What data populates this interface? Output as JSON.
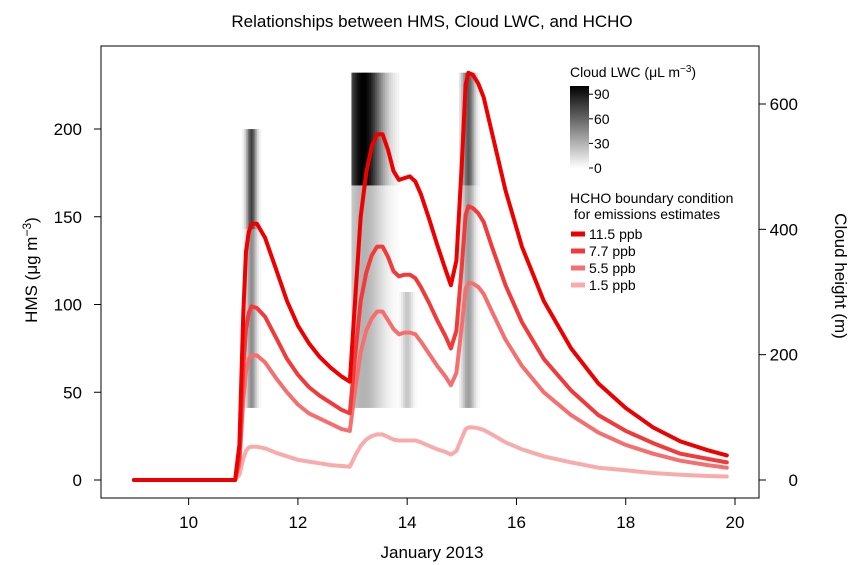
{
  "chart_data": {
    "type": "line",
    "title": "Relationships between HMS, Cloud LWC, and HCHO",
    "xlabel": "January 2013",
    "ylabel_left": "HMS (μg m",
    "ylabel_left_sup": "−3",
    "ylabel_left_close": ")",
    "ylabel_right": "Cloud height (m)",
    "xlim": [
      8.6,
      20.4
    ],
    "ylim_left": [
      -12,
      236
    ],
    "ylim_right": [
      -34,
      660
    ],
    "x_ticks": [
      10,
      12,
      14,
      16,
      18,
      20
    ],
    "y_ticks_left": [
      0,
      50,
      100,
      150,
      200
    ],
    "y_ticks_right": [
      0,
      200,
      400,
      600
    ],
    "grid": false,
    "legend_lwc": {
      "title_prefix": "Cloud LWC (",
      "title_unit": "μL m",
      "title_sup": "−3",
      "title_suffix": ")",
      "ticks": [
        0,
        30,
        60,
        90
      ],
      "color_low": "#ffffff",
      "color_high": "#000000"
    },
    "legend_hcho": {
      "title_line1": "HCHO boundary condition",
      "title_line2": " for emissions estimates",
      "placement": "top-right"
    },
    "series": [
      {
        "name": "11.5 ppb",
        "color": "#ee0000",
        "points": [
          [
            9.0,
            0
          ],
          [
            10.85,
            0
          ],
          [
            10.93,
            20
          ],
          [
            11.0,
            95
          ],
          [
            11.05,
            130
          ],
          [
            11.1,
            141
          ],
          [
            11.15,
            146
          ],
          [
            11.25,
            146
          ],
          [
            11.4,
            138
          ],
          [
            11.6,
            120
          ],
          [
            11.8,
            102
          ],
          [
            12.0,
            88
          ],
          [
            12.2,
            78
          ],
          [
            12.4,
            70
          ],
          [
            12.6,
            64
          ],
          [
            12.8,
            59
          ],
          [
            12.95,
            56
          ],
          [
            13.05,
            104
          ],
          [
            13.15,
            150
          ],
          [
            13.25,
            175
          ],
          [
            13.35,
            190
          ],
          [
            13.45,
            197
          ],
          [
            13.55,
            197
          ],
          [
            13.65,
            188
          ],
          [
            13.75,
            176
          ],
          [
            13.85,
            171
          ],
          [
            13.95,
            172
          ],
          [
            14.05,
            173
          ],
          [
            14.15,
            170
          ],
          [
            14.25,
            163
          ],
          [
            14.4,
            149
          ],
          [
            14.55,
            134
          ],
          [
            14.7,
            120
          ],
          [
            14.8,
            111
          ],
          [
            14.9,
            125
          ],
          [
            15.0,
            180
          ],
          [
            15.07,
            225
          ],
          [
            15.12,
            232
          ],
          [
            15.2,
            231
          ],
          [
            15.3,
            226
          ],
          [
            15.4,
            218
          ],
          [
            15.55,
            198
          ],
          [
            15.8,
            165
          ],
          [
            16.1,
            133
          ],
          [
            16.5,
            102
          ],
          [
            17.0,
            75
          ],
          [
            17.5,
            55
          ],
          [
            18.0,
            41
          ],
          [
            18.5,
            30
          ],
          [
            19.0,
            22
          ],
          [
            19.5,
            17
          ],
          [
            19.85,
            14
          ]
        ]
      },
      {
        "name": "7.7 ppb",
        "color": "#f23a3a",
        "points": [
          [
            9.0,
            0
          ],
          [
            10.85,
            0
          ],
          [
            10.93,
            13
          ],
          [
            11.0,
            64
          ],
          [
            11.05,
            86
          ],
          [
            11.1,
            95
          ],
          [
            11.15,
            99
          ],
          [
            11.25,
            98
          ],
          [
            11.4,
            93
          ],
          [
            11.6,
            81
          ],
          [
            11.8,
            69
          ],
          [
            12.0,
            60
          ],
          [
            12.2,
            53
          ],
          [
            12.4,
            48
          ],
          [
            12.6,
            44
          ],
          [
            12.8,
            40
          ],
          [
            12.95,
            38
          ],
          [
            13.05,
            72
          ],
          [
            13.15,
            102
          ],
          [
            13.25,
            118
          ],
          [
            13.35,
            128
          ],
          [
            13.45,
            133
          ],
          [
            13.55,
            133
          ],
          [
            13.65,
            127
          ],
          [
            13.75,
            119
          ],
          [
            13.85,
            116
          ],
          [
            13.95,
            117
          ],
          [
            14.05,
            117
          ],
          [
            14.15,
            115
          ],
          [
            14.25,
            110
          ],
          [
            14.4,
            101
          ],
          [
            14.55,
            91
          ],
          [
            14.7,
            82
          ],
          [
            14.8,
            75
          ],
          [
            14.9,
            85
          ],
          [
            15.0,
            122
          ],
          [
            15.07,
            151
          ],
          [
            15.12,
            156
          ],
          [
            15.2,
            155
          ],
          [
            15.3,
            152
          ],
          [
            15.4,
            147
          ],
          [
            15.55,
            133
          ],
          [
            15.8,
            111
          ],
          [
            16.1,
            90
          ],
          [
            16.5,
            69
          ],
          [
            17.0,
            51
          ],
          [
            17.5,
            37
          ],
          [
            18.0,
            28
          ],
          [
            18.5,
            21
          ],
          [
            19.0,
            15
          ],
          [
            19.5,
            12
          ],
          [
            19.85,
            10
          ]
        ]
      },
      {
        "name": "5.5 ppb",
        "color": "#f56f6f",
        "points": [
          [
            9.0,
            0
          ],
          [
            10.85,
            0
          ],
          [
            10.93,
            9
          ],
          [
            11.0,
            46
          ],
          [
            11.05,
            62
          ],
          [
            11.1,
            69
          ],
          [
            11.15,
            71
          ],
          [
            11.25,
            71
          ],
          [
            11.4,
            67
          ],
          [
            11.6,
            58
          ],
          [
            11.8,
            50
          ],
          [
            12.0,
            43
          ],
          [
            12.2,
            38
          ],
          [
            12.4,
            35
          ],
          [
            12.6,
            32
          ],
          [
            12.8,
            29
          ],
          [
            12.95,
            28
          ],
          [
            13.05,
            52
          ],
          [
            13.15,
            73
          ],
          [
            13.25,
            85
          ],
          [
            13.35,
            92
          ],
          [
            13.45,
            96
          ],
          [
            13.55,
            96
          ],
          [
            13.65,
            91
          ],
          [
            13.75,
            86
          ],
          [
            13.85,
            83
          ],
          [
            13.95,
            84
          ],
          [
            14.05,
            84
          ],
          [
            14.15,
            83
          ],
          [
            14.25,
            79
          ],
          [
            14.4,
            72
          ],
          [
            14.55,
            65
          ],
          [
            14.7,
            59
          ],
          [
            14.8,
            54
          ],
          [
            14.9,
            61
          ],
          [
            15.0,
            88
          ],
          [
            15.07,
            109
          ],
          [
            15.12,
            112
          ],
          [
            15.2,
            112
          ],
          [
            15.3,
            110
          ],
          [
            15.4,
            106
          ],
          [
            15.55,
            96
          ],
          [
            15.8,
            80
          ],
          [
            16.1,
            65
          ],
          [
            16.5,
            50
          ],
          [
            17.0,
            37
          ],
          [
            17.5,
            27
          ],
          [
            18.0,
            20
          ],
          [
            18.5,
            15
          ],
          [
            19.0,
            11
          ],
          [
            19.5,
            8.5
          ],
          [
            19.85,
            7
          ]
        ]
      },
      {
        "name": "1.5 ppb",
        "color": "#f9abab",
        "points": [
          [
            9.0,
            0
          ],
          [
            10.85,
            0
          ],
          [
            10.93,
            3
          ],
          [
            11.0,
            12
          ],
          [
            11.05,
            16.5
          ],
          [
            11.1,
            18.5
          ],
          [
            11.15,
            19
          ],
          [
            11.25,
            19
          ],
          [
            11.4,
            18
          ],
          [
            11.6,
            15.5
          ],
          [
            11.8,
            13.5
          ],
          [
            12.0,
            11.5
          ],
          [
            12.2,
            10.5
          ],
          [
            12.4,
            9.5
          ],
          [
            12.6,
            8.5
          ],
          [
            12.8,
            8
          ],
          [
            12.95,
            7.5
          ],
          [
            13.05,
            14
          ],
          [
            13.15,
            19.5
          ],
          [
            13.25,
            23
          ],
          [
            13.35,
            25
          ],
          [
            13.45,
            26
          ],
          [
            13.55,
            26
          ],
          [
            13.65,
            24.5
          ],
          [
            13.75,
            23
          ],
          [
            13.85,
            22.5
          ],
          [
            13.95,
            22.5
          ],
          [
            14.05,
            22.5
          ],
          [
            14.15,
            22.5
          ],
          [
            14.25,
            21.5
          ],
          [
            14.4,
            19.5
          ],
          [
            14.55,
            17.5
          ],
          [
            14.7,
            16
          ],
          [
            14.8,
            14.5
          ],
          [
            14.9,
            16.5
          ],
          [
            15.0,
            24
          ],
          [
            15.07,
            29
          ],
          [
            15.12,
            30
          ],
          [
            15.2,
            30
          ],
          [
            15.3,
            29.5
          ],
          [
            15.4,
            28.5
          ],
          [
            15.55,
            26
          ],
          [
            15.8,
            21.5
          ],
          [
            16.1,
            17.5
          ],
          [
            16.5,
            13.5
          ],
          [
            17.0,
            10
          ],
          [
            17.5,
            7
          ],
          [
            18.0,
            5.5
          ],
          [
            18.5,
            4
          ],
          [
            19.0,
            3
          ],
          [
            19.5,
            2.3
          ],
          [
            19.85,
            2
          ]
        ]
      }
    ],
    "cloud_bands": [
      {
        "x0": 10.98,
        "x1": 11.32,
        "bottom_m": 400,
        "top_m": 560,
        "lwc_peak": 75,
        "peak_x": 11.15
      },
      {
        "x0": 10.98,
        "x1": 11.32,
        "bottom_m": 115,
        "top_m": 400,
        "lwc_peak": 45,
        "peak_x": 11.15
      },
      {
        "x0": 12.98,
        "x1": 13.85,
        "bottom_m": 470,
        "top_m": 650,
        "lwc_peak": 100,
        "peak_x": 13.2
      },
      {
        "x0": 12.98,
        "x1": 13.85,
        "bottom_m": 115,
        "top_m": 470,
        "lwc_peak": 30,
        "peak_x": 13.2
      },
      {
        "x0": 13.85,
        "x1": 14.18,
        "bottom_m": 115,
        "top_m": 300,
        "lwc_peak": 22,
        "peak_x": 14.0
      },
      {
        "x0": 14.95,
        "x1": 15.33,
        "bottom_m": 470,
        "top_m": 650,
        "lwc_peak": 65,
        "peak_x": 15.12
      },
      {
        "x0": 14.95,
        "x1": 15.33,
        "bottom_m": 115,
        "top_m": 470,
        "lwc_peak": 38,
        "peak_x": 15.12
      }
    ]
  }
}
